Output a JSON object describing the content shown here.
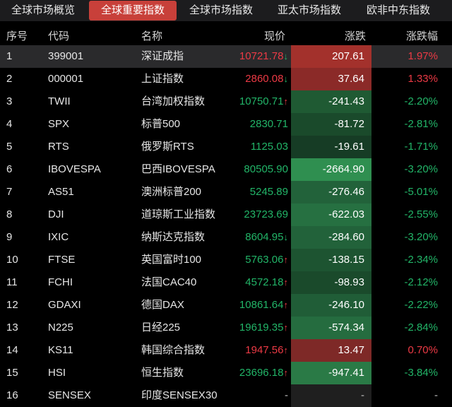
{
  "tabs": [
    "全球市场概览",
    "全球重要指数",
    "全球市场指数",
    "亚太市场指数",
    "欧非中东指数"
  ],
  "active_tab_index": 1,
  "columns": {
    "seq": "序号",
    "code": "代码",
    "name": "名称",
    "price": "现价",
    "change": "涨跌",
    "pct": "涨跌幅"
  },
  "colors": {
    "up": "#ec3a45",
    "down": "#22b568",
    "active_tab": "#c8403a"
  },
  "rows": [
    {
      "seq": "1",
      "code": "399001",
      "name": "深证成指",
      "price": "10721.78",
      "arrow": "↓",
      "change": "207.61",
      "pct": "1.97%",
      "trend": "up",
      "shade": "#a3312c",
      "selected": true
    },
    {
      "seq": "2",
      "code": "000001",
      "name": "上证指数",
      "price": "2860.08",
      "arrow": "↓",
      "change": "37.64",
      "pct": "1.33%",
      "trend": "up",
      "shade": "#8b2a28"
    },
    {
      "seq": "3",
      "code": "TWII",
      "name": "台湾加权指数",
      "price": "10750.71",
      "arrow": "↑",
      "change": "-241.43",
      "pct": "-2.20%",
      "trend": "down",
      "shade": "#1f5a33"
    },
    {
      "seq": "4",
      "code": "SPX",
      "name": "标普500",
      "price": "2830.71",
      "arrow": "",
      "change": "-81.72",
      "pct": "-2.81%",
      "trend": "down",
      "shade": "#1a4a2b"
    },
    {
      "seq": "5",
      "code": "RTS",
      "name": "俄罗斯RTS",
      "price": "1125.03",
      "arrow": "",
      "change": "-19.61",
      "pct": "-1.71%",
      "trend": "down",
      "shade": "#163c25"
    },
    {
      "seq": "6",
      "code": "IBOVESPA",
      "name": "巴西IBOVESPA",
      "price": "80505.90",
      "arrow": "",
      "change": "-2664.90",
      "pct": "-3.20%",
      "trend": "down",
      "shade": "#2f8f50"
    },
    {
      "seq": "7",
      "code": "AS51",
      "name": "澳洲标普200",
      "price": "5245.89",
      "arrow": "",
      "change": "-276.46",
      "pct": "-5.01%",
      "trend": "down",
      "shade": "#22623a"
    },
    {
      "seq": "8",
      "code": "DJI",
      "name": "道琼斯工业指数",
      "price": "23723.69",
      "arrow": "",
      "change": "-622.03",
      "pct": "-2.55%",
      "trend": "down",
      "shade": "#267041"
    },
    {
      "seq": "9",
      "code": "IXIC",
      "name": "纳斯达克指数",
      "price": "8604.95",
      "arrow": "↓",
      "change": "-284.60",
      "pct": "-3.20%",
      "trend": "down",
      "shade": "#22623a"
    },
    {
      "seq": "10",
      "code": "FTSE",
      "name": "英国富时100",
      "price": "5763.06",
      "arrow": "↑",
      "change": "-138.15",
      "pct": "-2.34%",
      "trend": "down",
      "shade": "#1d5431"
    },
    {
      "seq": "11",
      "code": "FCHI",
      "name": "法国CAC40",
      "price": "4572.18",
      "arrow": "↑",
      "change": "-98.93",
      "pct": "-2.12%",
      "trend": "down",
      "shade": "#1a4a2b"
    },
    {
      "seq": "12",
      "code": "GDAXI",
      "name": "德国DAX",
      "price": "10861.64",
      "arrow": "↑",
      "change": "-246.10",
      "pct": "-2.22%",
      "trend": "down",
      "shade": "#205d37"
    },
    {
      "seq": "13",
      "code": "N225",
      "name": "日经225",
      "price": "19619.35",
      "arrow": "↑",
      "change": "-574.34",
      "pct": "-2.84%",
      "trend": "down",
      "shade": "#256c3f"
    },
    {
      "seq": "14",
      "code": "KS11",
      "name": "韩国综合指数",
      "price": "1947.56",
      "arrow": "↑",
      "change": "13.47",
      "pct": "0.70%",
      "trend": "up",
      "shade": "#7e2927"
    },
    {
      "seq": "15",
      "code": "HSI",
      "name": "恒生指数",
      "price": "23696.18",
      "arrow": "↑",
      "change": "-947.41",
      "pct": "-3.84%",
      "trend": "down",
      "shade": "#2a7a46"
    },
    {
      "seq": "16",
      "code": "SENSEX",
      "name": "印度SENSEX30",
      "price": "-",
      "arrow": "",
      "change": "-",
      "pct": "-",
      "trend": "flat",
      "shade": "#1f1f1f"
    }
  ]
}
